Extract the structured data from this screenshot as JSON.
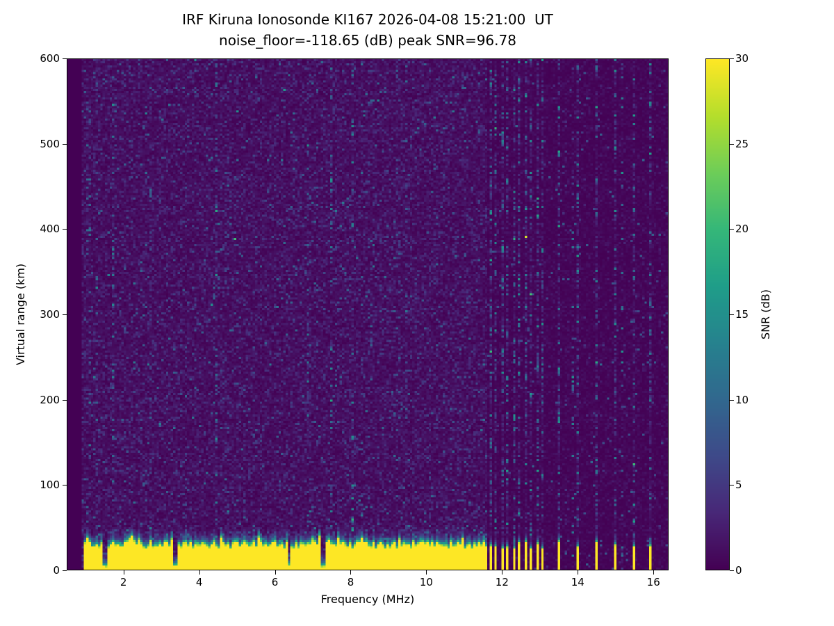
{
  "page": {
    "background": "#ffffff"
  },
  "chart_data": {
    "type": "heatmap",
    "title": "IRF Kiruna Ionosonde KI167 2026-04-08 15:21:00  UT",
    "subtitle": "noise_floor=-118.65 (dB) peak SNR=96.78",
    "station": "IRF Kiruna",
    "instrument": "Ionosonde KI167",
    "timestamp_ut": "2026-04-08 15:21:00",
    "noise_floor_db": -118.65,
    "peak_snr_db": 96.78,
    "xlabel": "Frequency (MHz)",
    "ylabel": "Virtual range (km)",
    "xlim": [
      0.5,
      16.4
    ],
    "ylim": [
      0,
      600
    ],
    "xticks": [
      2,
      4,
      6,
      8,
      10,
      12,
      14,
      16
    ],
    "yticks": [
      0,
      100,
      200,
      300,
      400,
      500,
      600
    ],
    "grid": false,
    "colormap": "viridis",
    "background_color": "#440154",
    "colorbar": {
      "label": "SNR (dB)",
      "min": 0,
      "max": 30,
      "ticks": [
        0,
        5,
        10,
        15,
        20,
        25,
        30
      ]
    },
    "features": {
      "background_snr_range_db": [
        0,
        6
      ],
      "data_start_mhz": 0.9,
      "ground_clutter_band": {
        "freq_range_mhz": [
          0.95,
          11.63
        ],
        "saturated_height_km": 30,
        "speckle_top_km": 48,
        "snr_db": 30,
        "gaps_mhz": [
          1.48,
          3.36,
          6.36,
          7.26
        ]
      },
      "pulsed_clutter_comb": {
        "freq_range_mhz": [
          11.66,
          13.15
        ],
        "period_mhz": 0.155,
        "duty_cycle": 0.45,
        "height_km": 30
      },
      "isolated_pulses_mhz": [
        13.5,
        14.0,
        14.5,
        15.0,
        15.5,
        15.93
      ],
      "rfi_stripes": "full-height speckled columns aligned with pulsed signals between 11.7 and 16 MHz",
      "faint_echo_trace": {
        "freq_mhz": [
          4.15,
          4.55
        ],
        "range_km": [
          280,
          345
        ]
      }
    }
  }
}
